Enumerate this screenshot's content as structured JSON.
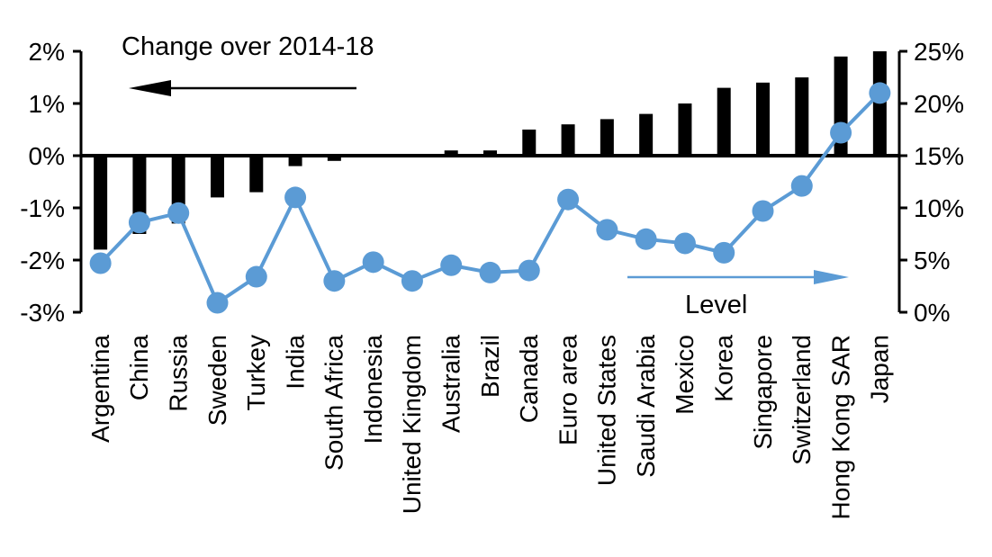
{
  "chart_data": {
    "type": "combo",
    "title": "",
    "categories": [
      "Argentina",
      "China",
      "Russia",
      "Sweden",
      "Turkey",
      "India",
      "South Africa",
      "Indonesia",
      "United Kingdom",
      "Australia",
      "Brazil",
      "Canada",
      "Euro area",
      "United States",
      "Saudi Arabia",
      "Mexico",
      "Korea",
      "Singapore",
      "Switzerland",
      "Hong Kong SAR",
      "Japan"
    ],
    "series": [
      {
        "name": "Change over 2014-18",
        "type": "bar",
        "axis": "left",
        "color": "#000000",
        "values": [
          -1.8,
          -1.5,
          -1.3,
          -0.8,
          -0.7,
          -0.2,
          -0.1,
          0.0,
          0.0,
          0.1,
          0.1,
          0.5,
          0.6,
          0.7,
          0.8,
          1.0,
          1.3,
          1.4,
          1.5,
          1.9,
          2.0
        ]
      },
      {
        "name": "Level",
        "type": "line",
        "axis": "right",
        "color": "#5B9BD5",
        "values": [
          4.7,
          8.6,
          9.5,
          0.9,
          3.4,
          11.0,
          3.0,
          4.8,
          3.0,
          4.5,
          3.8,
          4.0,
          10.8,
          7.9,
          7.0,
          6.6,
          5.7,
          9.7,
          12.1,
          17.2,
          21.0
        ]
      }
    ],
    "left_axis": {
      "min": -3,
      "max": 2,
      "tick_labels": [
        "2%",
        "1%",
        "0%",
        "-1%",
        "-2%",
        "-3%"
      ],
      "grid": false
    },
    "right_axis": {
      "min": 0,
      "max": 25,
      "tick_labels": [
        "25%",
        "20%",
        "15%",
        "10%",
        "5%",
        "0%"
      ],
      "grid": false
    },
    "legend_position": "none",
    "annotations": [
      {
        "text": "Change over 2014-18",
        "arrow_direction": "left",
        "arrow_color": "#000000"
      },
      {
        "text": "Level",
        "arrow_direction": "right",
        "arrow_color": "#5B9BD5"
      }
    ]
  }
}
